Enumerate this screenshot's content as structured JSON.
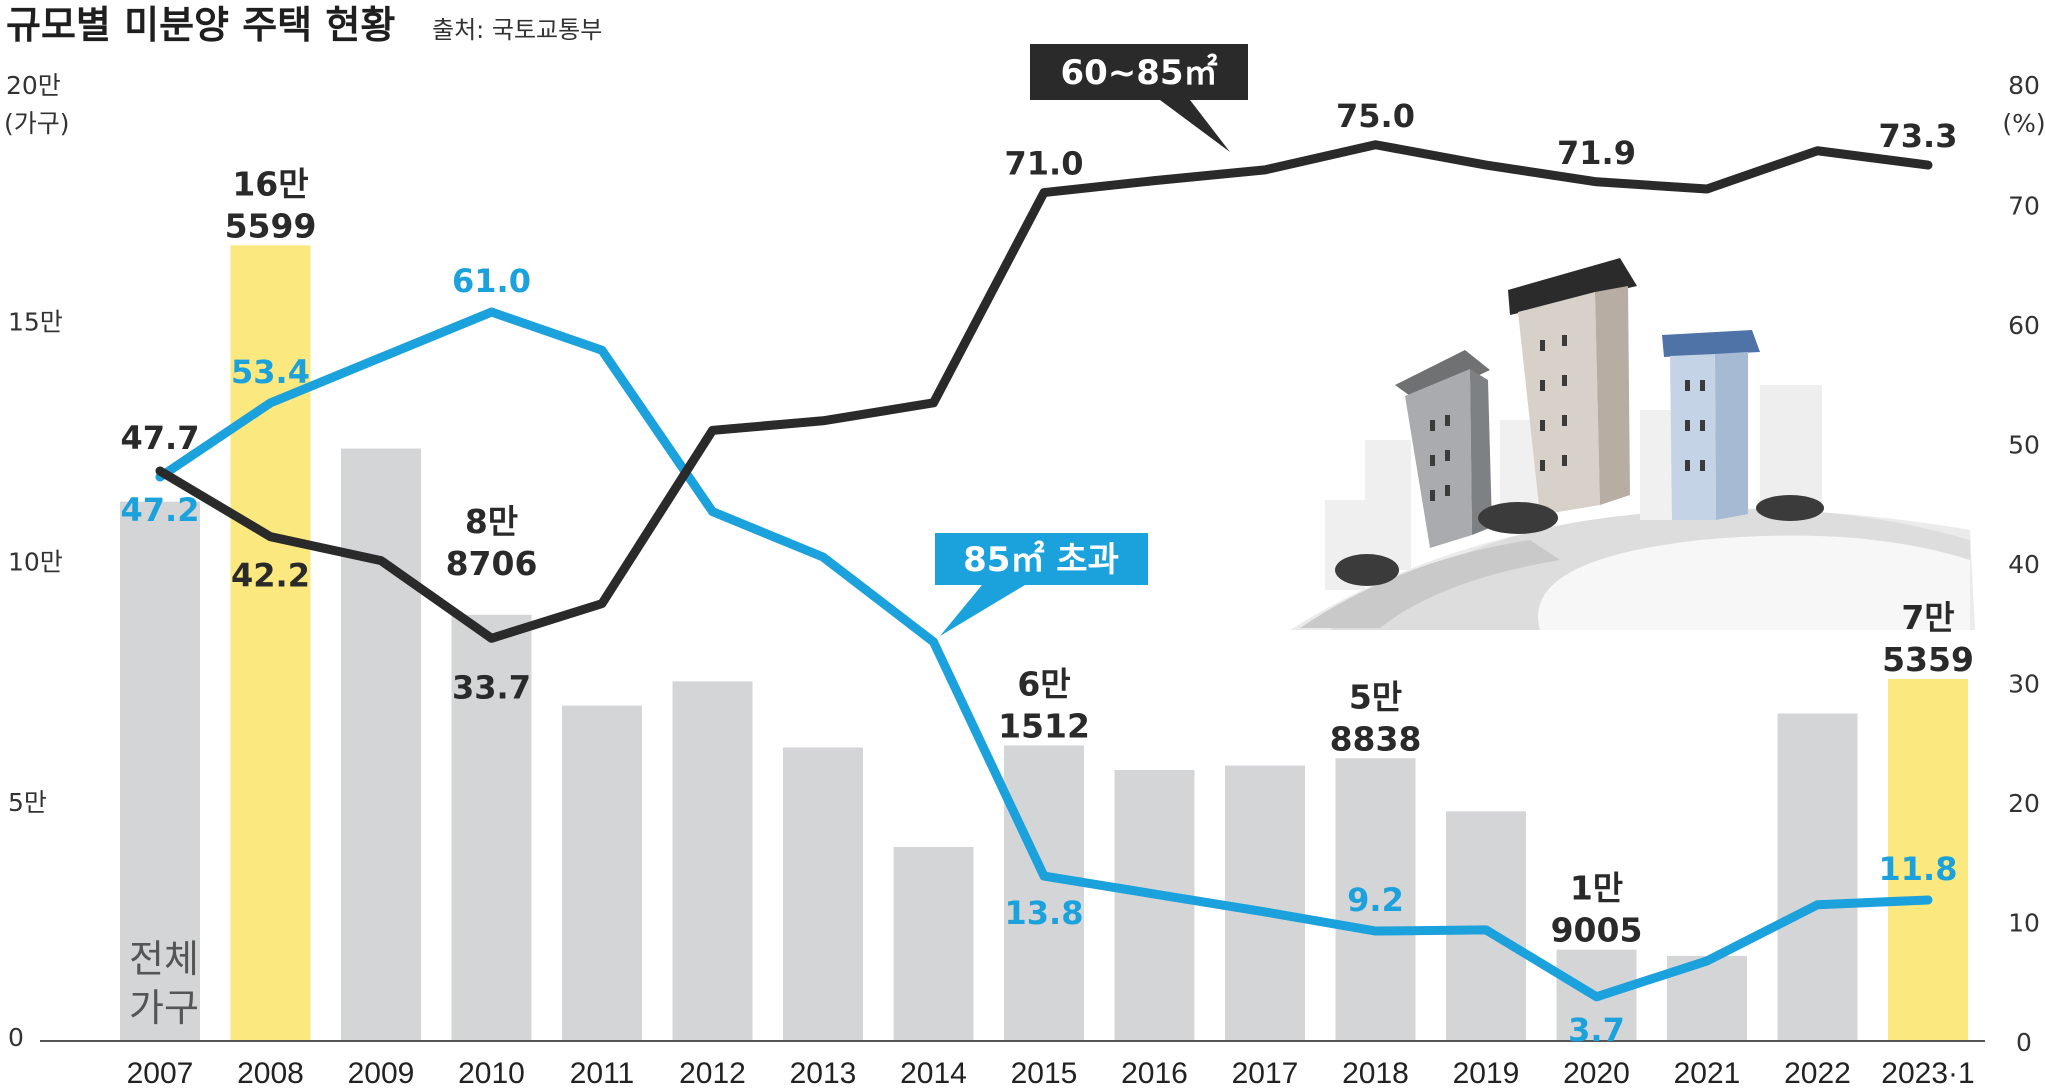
{
  "title": "규모별 미분양 주택 현황",
  "source": "출처: 국토교통부",
  "colors": {
    "bar": "#d4d5d7",
    "bar_highlight": "#fbe97f",
    "line_large": "#1ba1dc",
    "line_mid": "#2a2a2a"
  },
  "left_axis": {
    "unit": "(가구)",
    "tick_labels": [
      "0",
      "5만",
      "10만",
      "15만",
      "20만"
    ]
  },
  "right_axis": {
    "unit": "(%)",
    "tick_labels": [
      "0",
      "10",
      "20",
      "30",
      "40",
      "50",
      "60",
      "70",
      "80"
    ]
  },
  "series_labels": {
    "total": [
      "전체",
      "가구"
    ],
    "mid": "60~85㎡",
    "large": "85㎡ 초과"
  },
  "icons": [
    "apartment-buildings-illustration"
  ],
  "chart_data": {
    "type": "bar",
    "categories": [
      "2007",
      "2008",
      "2009",
      "2010",
      "2011",
      "2012",
      "2013",
      "2014",
      "2015",
      "2016",
      "2017",
      "2018",
      "2019",
      "2020",
      "2021",
      "2022",
      "2023·1"
    ],
    "ylim_left": [
      0,
      200000
    ],
    "ylim_right": [
      0,
      80
    ],
    "highlight": [
      "2008",
      "2023·1"
    ],
    "series": [
      {
        "name": "전체 가구",
        "axis": "left",
        "type": "bar",
        "values": [
          112254,
          165599,
          123297,
          88706,
          69807,
          74835,
          61091,
          40379,
          61512,
          56413,
          57330,
          58838,
          47797,
          19005,
          17710,
          68148,
          75359
        ],
        "labels": {
          "2008": [
            "16만",
            "5599"
          ],
          "2010": [
            "8만",
            "8706"
          ],
          "2015": [
            "6만",
            "1512"
          ],
          "2018": [
            "5만",
            "8838"
          ],
          "2020": [
            "1만",
            "9005"
          ],
          "2023·1": [
            "7만",
            "5359"
          ]
        }
      },
      {
        "name": "60~85㎡",
        "axis": "right",
        "type": "line",
        "values": [
          47.7,
          42.2,
          40.2,
          33.7,
          36.6,
          51.1,
          51.9,
          53.4,
          71.0,
          72.0,
          72.9,
          75.0,
          73.3,
          71.9,
          71.3,
          74.5,
          73.3
        ],
        "labels": {
          "2007": "47.7",
          "2008": "42.2",
          "2010": "33.7",
          "2015": "71.0",
          "2018": "75.0",
          "2020": "71.9",
          "2023·1": "73.3"
        }
      },
      {
        "name": "85㎡ 초과",
        "axis": "right",
        "type": "line",
        "values": [
          47.2,
          53.4,
          57.2,
          61.0,
          57.8,
          44.3,
          40.5,
          33.4,
          13.8,
          12.3,
          10.8,
          9.2,
          9.3,
          3.7,
          6.7,
          11.4,
          11.8
        ],
        "labels": {
          "2007": "47.2",
          "2008": "53.4",
          "2010": "61.0",
          "2015": "13.8",
          "2018": "9.2",
          "2020": "3.7",
          "2023·1": "11.8"
        }
      }
    ]
  }
}
